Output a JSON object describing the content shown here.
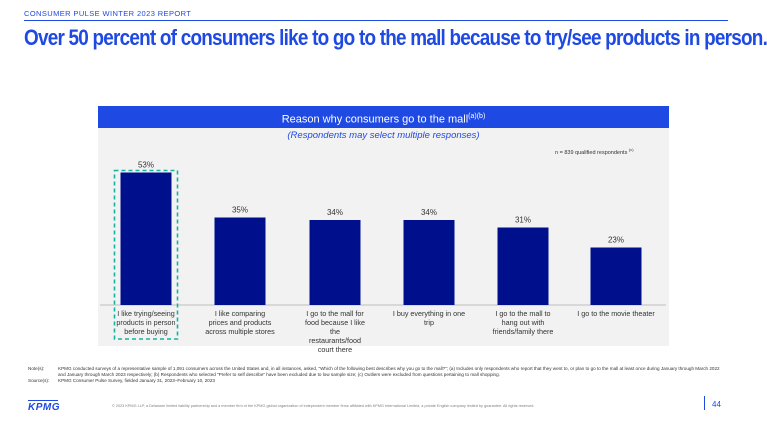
{
  "report_label": "CONSUMER PULSE WINTER 2023 REPORT",
  "headline": "Over 50 percent of consumers like to go to the mall because to try/see products in person.",
  "panel": {
    "title": "Reason why consumers go to the mall",
    "title_sup": "(a)(b)",
    "subtitle": "(Respondents may select multiple responses)",
    "n_note": "n = 839 qualified respondents",
    "n_note_sup": "(c)"
  },
  "chart_data": {
    "type": "bar",
    "title": "Reason why consumers go to the mall",
    "categories": [
      [
        "I like trying/seeing",
        "products in person",
        "before buying"
      ],
      [
        "I like comparing",
        "prices and products",
        "across multiple stores"
      ],
      [
        "I go to the mall for",
        "food because I like",
        "the",
        "restaurants/food",
        "court there"
      ],
      [
        "I buy everything in one trip"
      ],
      [
        "I go to the mall to",
        "hang out with",
        "friends/family there"
      ],
      [
        "I go to the movie theater"
      ]
    ],
    "values": [
      53,
      35,
      34,
      34,
      31,
      23
    ],
    "value_labels": [
      "53%",
      "35%",
      "34%",
      "34%",
      "31%",
      "23%"
    ],
    "ylim": [
      0,
      60
    ],
    "highlighted_index": 0,
    "bar_color": "#00108d",
    "highlight_color": "#13b5a0"
  },
  "notes": {
    "notes_key": "Note(s):",
    "notes_text": "KPMG conducted surveys of a representative sample of 1,091 consumers across the United States and, in all instances, asked, \"Which of the following best describes why you go to the mall?\"; (a) Includes only respondents who report that they went to, or plan to go to the mall at least once during January through March 2022 and January through March 2023 respectively; (b) Respondents who selected \"Prefer to self describe\" have been excluded due to low sample size; (c) Outliers were excluded from questions pertaining to mall shopping.",
    "source_key": "Source(s):",
    "source_text": "KPMG Consumer Pulse Survey, fielded January 31, 2023–February 10, 2023"
  },
  "footer": {
    "logo": "KPMG",
    "copyright": "© 2023 KPMG LLP, a Delaware limited liability partnership and a member firm of the KPMG global organization of independent member firms affiliated with KPMG International Limited, a private English company limited by guarantee. All rights reserved.",
    "page_number": "44"
  },
  "colors": {
    "brand_blue": "#1e49e2",
    "dark_blue": "#00108d",
    "panel_bg": "#f2f2f2"
  }
}
